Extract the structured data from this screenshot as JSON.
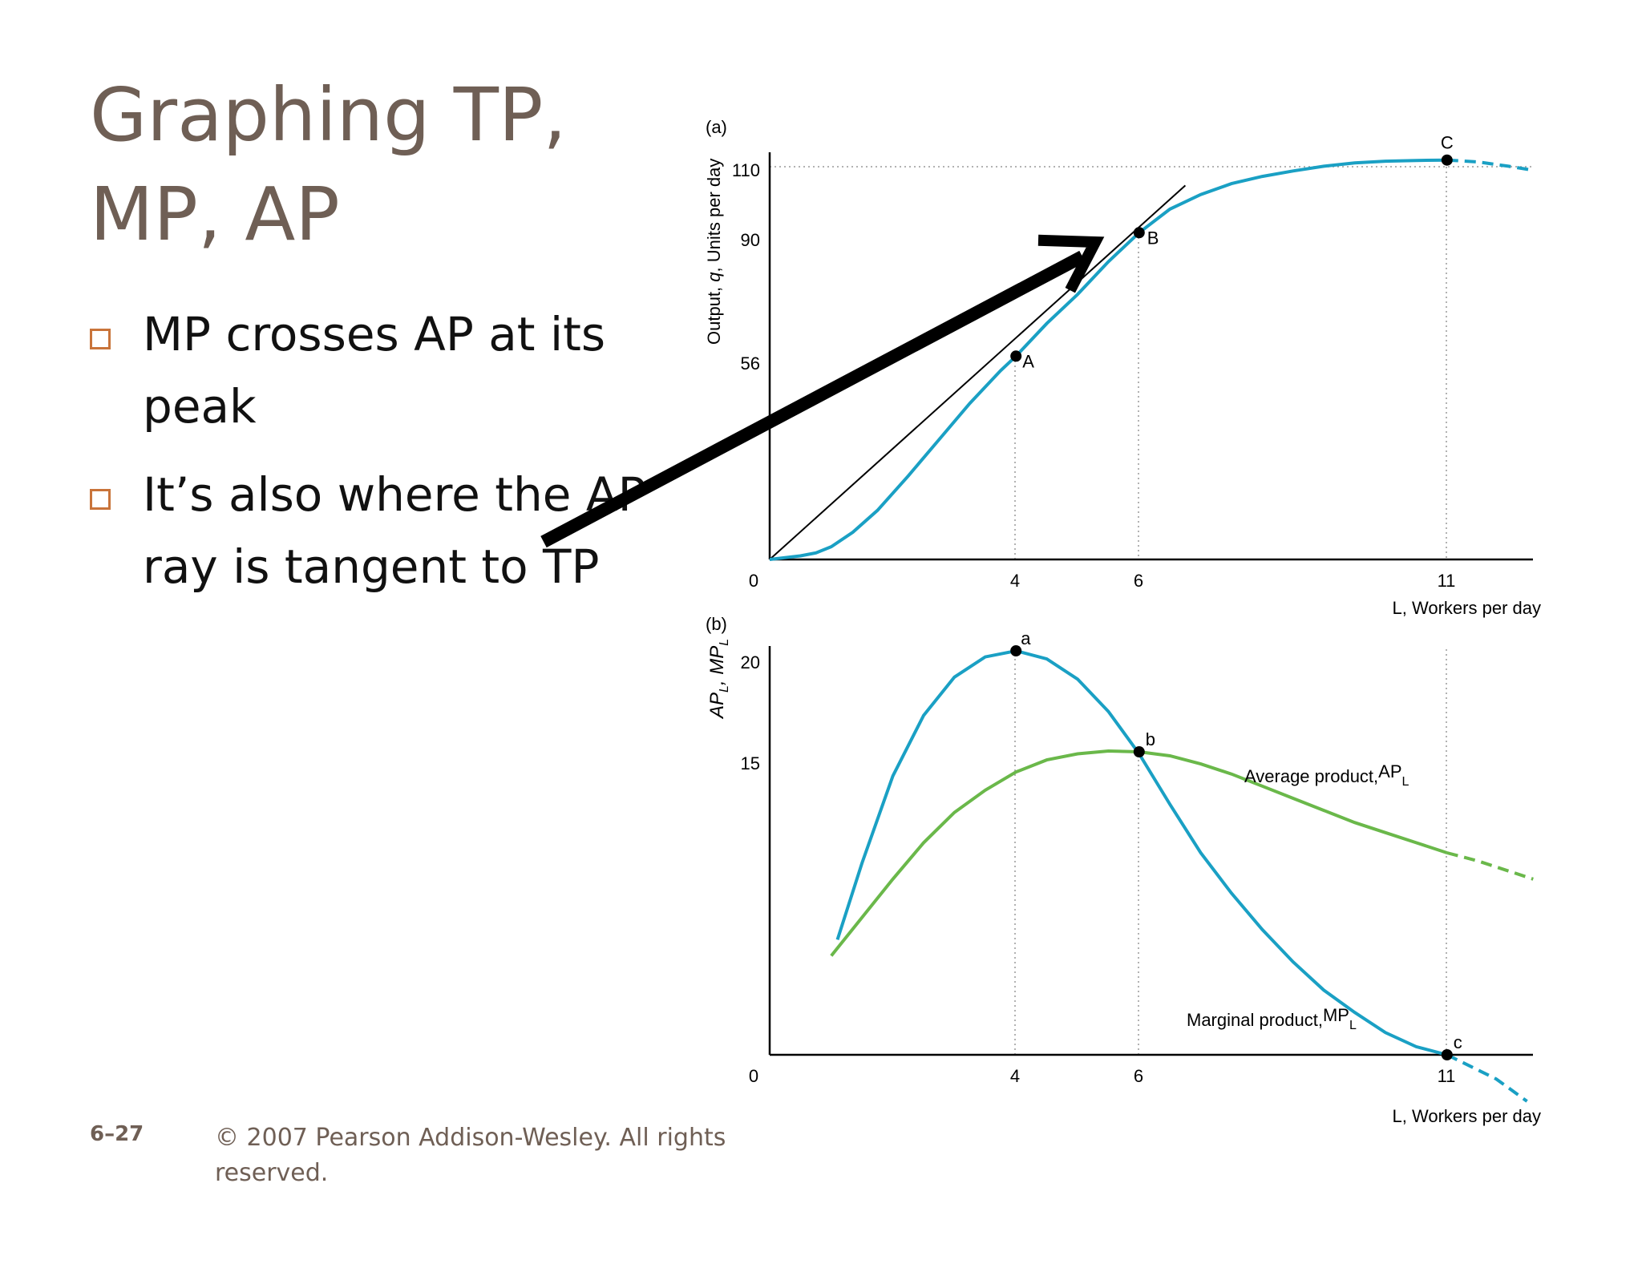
{
  "slide": {
    "title_line1": "Graphing TP,",
    "title_line2": "MP, AP",
    "bullets": [
      "MP crosses AP at its peak",
      "It’s also where the AP ray is tangent to TP"
    ],
    "slide_number": "6–27",
    "copyright": "© 2007 Pearson Addison-Wesley. All rights reserved."
  },
  "colors": {
    "text": "#6f5f55",
    "bullet_box": "#c9743a",
    "tp_curve": "#1aa0c4",
    "mp_curve": "#1aa0c4",
    "ap_curve": "#6ab84a",
    "annotation_arrow": "#000000"
  },
  "chart_data": [
    {
      "type": "line",
      "panel_label": "(a)",
      "xlabel_prefix": "L",
      "xlabel_rest": ", Workers per day",
      "ylabel_a": "Output, ",
      "ylabel_b": "q",
      "ylabel_c": ", Units per day",
      "xlim": [
        0,
        12.4
      ],
      "ylim": [
        0,
        118
      ],
      "x_ticks": [
        "0",
        "4",
        "6",
        "11"
      ],
      "y_ticks": [
        "56",
        "90",
        "110"
      ],
      "series": [
        {
          "id": "tp",
          "x": [
            0,
            0.25,
            0.5,
            0.75,
            1,
            1.35,
            1.75,
            2.25,
            2.75,
            3.25,
            3.75,
            4,
            4.5,
            5,
            5.5,
            6,
            6.5,
            7,
            7.5,
            8,
            8.5,
            9,
            9.5,
            10,
            10.5,
            11
          ],
          "y": [
            0,
            0.5,
            1,
            1.8,
            3.5,
            7.5,
            13.5,
            23,
            33,
            43,
            52,
            56,
            65,
            73,
            82,
            90,
            96.5,
            100.5,
            103.5,
            105.5,
            107,
            108.3,
            109.2,
            109.7,
            109.9,
            110
          ],
          "dashed_x": [
            11,
            11.5,
            12,
            12.4
          ],
          "dashed_y": [
            110,
            109.5,
            108.3,
            107.2
          ]
        },
        {
          "id": "ap-ray",
          "x": [
            0,
            6.75
          ],
          "y": [
            0,
            103
          ]
        }
      ],
      "points": [
        {
          "label": "A",
          "x": 4,
          "y": 56
        },
        {
          "label": "B",
          "x": 6,
          "y": 90
        },
        {
          "label": "C",
          "x": 11,
          "y": 110
        }
      ]
    },
    {
      "type": "line",
      "panel_label": "(b)",
      "xlabel_prefix": "L",
      "xlabel_rest": ", Workers per day",
      "ylabel_main": "AP",
      "ylabel_sub1": "L",
      "ylabel_sep": ", MP",
      "ylabel_sub2": "L",
      "xlim": [
        0,
        12.4
      ],
      "ylim": [
        0,
        21
      ],
      "x_ticks": [
        "0",
        "4",
        "6",
        "11"
      ],
      "y_ticks": [
        "15",
        "20"
      ],
      "series": [
        {
          "id": "mp",
          "name": "Marginal product,",
          "name_sub": "MP",
          "name_sub2": "L",
          "x": [
            1.1,
            1.5,
            2,
            2.5,
            3,
            3.5,
            4,
            4.5,
            5,
            5.5,
            6,
            6.5,
            7,
            7.5,
            8,
            8.5,
            9,
            9.5,
            10,
            10.5,
            11
          ],
          "y": [
            5.7,
            9.5,
            13.8,
            16.8,
            18.7,
            19.7,
            20,
            19.6,
            18.6,
            17,
            14.9,
            12.4,
            10,
            8,
            6.2,
            4.6,
            3.2,
            2.1,
            1.1,
            0.4,
            0
          ],
          "dashed_x": [
            11,
            11.4,
            11.8,
            12.3
          ],
          "dashed_y": [
            0,
            -0.6,
            -1.2,
            -2.3
          ]
        },
        {
          "id": "ap",
          "name": "Average product,",
          "name_sub": "AP",
          "name_sub2": "L",
          "x": [
            1,
            1.5,
            2,
            2.5,
            3,
            3.5,
            4,
            4.5,
            5,
            5.5,
            6,
            6.5,
            7,
            7.5,
            8,
            8.5,
            9,
            9.5,
            10,
            10.5,
            11
          ],
          "y": [
            4.9,
            6.8,
            8.7,
            10.5,
            12,
            13.1,
            14,
            14.6,
            14.9,
            15.04,
            15,
            14.8,
            14.4,
            13.9,
            13.3,
            12.7,
            12.1,
            11.5,
            11,
            10.5,
            10
          ],
          "dashed_x": [
            11,
            11.5,
            12,
            12.4
          ],
          "dashed_y": [
            10,
            9.6,
            9.1,
            8.7
          ]
        }
      ],
      "points": [
        {
          "label": "a",
          "x": 4,
          "y": 20
        },
        {
          "label": "b",
          "x": 6,
          "y": 15
        },
        {
          "label": "c",
          "x": 11,
          "y": 0
        }
      ]
    }
  ]
}
